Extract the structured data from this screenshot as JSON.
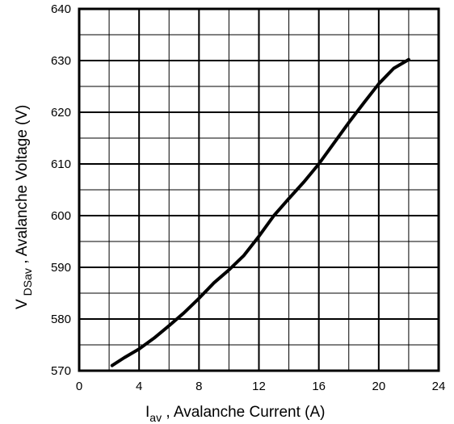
{
  "chart_data": {
    "type": "line",
    "title": "",
    "xlabel_main": "I",
    "xlabel_sub": "av",
    "xlabel_rest": " , Avalanche Current  (A)",
    "ylabel_main": "V",
    "ylabel_sub": "DSav",
    "ylabel_rest": " , Avalanche Voltage (V)",
    "xlim": [
      0,
      24
    ],
    "ylim": [
      570,
      640
    ],
    "x_ticks": [
      0,
      4,
      8,
      12,
      16,
      20,
      24
    ],
    "y_ticks": [
      570,
      580,
      590,
      600,
      610,
      620,
      630,
      640
    ],
    "x_tick_labels": [
      "0",
      "4",
      "8",
      "12",
      "16",
      "20",
      "24"
    ],
    "y_tick_labels": [
      "570",
      "580",
      "590",
      "600",
      "610",
      "620",
      "630",
      "640"
    ],
    "grid": true,
    "x_minor_step": 2,
    "y_minor_step": 5,
    "series": [
      {
        "color": "#000000",
        "x": [
          2.2,
          3,
          4,
          5,
          6,
          7,
          8,
          9,
          10,
          11,
          12,
          13,
          14,
          15,
          16,
          17,
          18,
          19,
          20,
          21,
          22
        ],
        "y": [
          571,
          572.5,
          574.2,
          576.3,
          578.7,
          581.2,
          584,
          587,
          589.5,
          592.3,
          596,
          600,
          603.3,
          606.5,
          610,
          614,
          618,
          621.8,
          625.5,
          628.5,
          630.2
        ]
      }
    ]
  }
}
